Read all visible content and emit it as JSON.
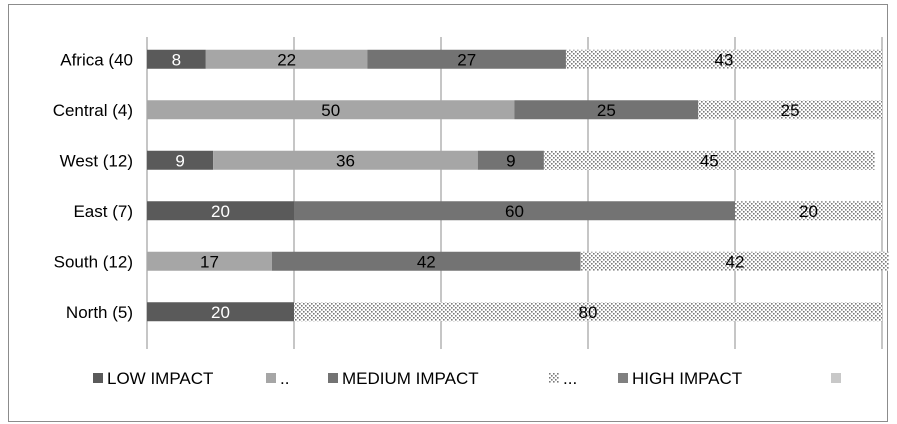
{
  "chart_data": {
    "type": "bar",
    "stacked": true,
    "percent": true,
    "orientation": "horizontal",
    "title": "",
    "xlabel": "",
    "ylabel": "",
    "xlim": [
      0,
      100
    ],
    "grid": true,
    "legend_position": "bottom",
    "categories": [
      "Africa (40",
      "Central (4)",
      "West (12)",
      "East (7)",
      "South (12)",
      "North (5)"
    ],
    "series": [
      {
        "name": "LOW IMPACT",
        "color": "#5a5a5a",
        "pattern": "solid",
        "label_color": "#ffffff",
        "values": [
          8,
          0,
          9,
          20,
          0,
          20
        ]
      },
      {
        "name": "..",
        "color": "#a6a6a6",
        "pattern": "solid",
        "label_color": "#000000",
        "values": [
          22,
          50,
          36,
          0,
          17,
          0
        ]
      },
      {
        "name": "MEDIUM IMPACT",
        "color": "#737373",
        "pattern": "solid",
        "label_color": "#000000",
        "values": [
          27,
          25,
          9,
          60,
          42,
          0
        ]
      },
      {
        "name": "...",
        "color": "#d9d9d9",
        "pattern": "dots",
        "label_color": "#000000",
        "values": [
          43,
          25,
          45,
          20,
          42,
          80
        ]
      },
      {
        "name": "HIGH IMPACT",
        "color": "#808080",
        "pattern": "solid",
        "label_color": "#000000",
        "values": [
          0,
          0,
          0,
          0,
          0,
          0
        ]
      },
      {
        "name": "",
        "color": "#c8c8c8",
        "pattern": "solid",
        "label_color": "#000000",
        "values": [
          0,
          0,
          0,
          0,
          0,
          0
        ]
      }
    ]
  }
}
